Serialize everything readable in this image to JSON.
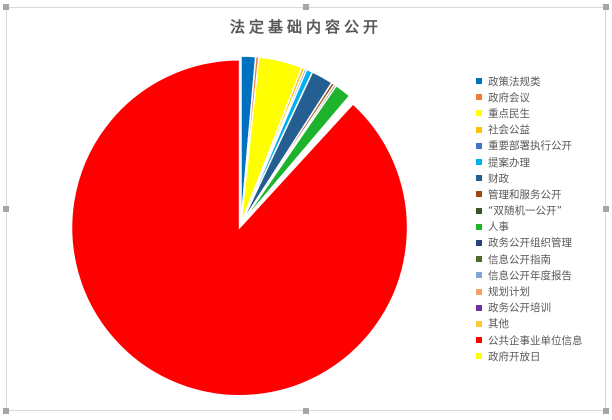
{
  "chart_data": {
    "type": "pie",
    "title": "法定基础内容公开",
    "legend_position": "right",
    "start_angle": "top, clockwise",
    "exploded_slice": "公共企事业单位信息",
    "slices": [
      {
        "label": "政策法规类",
        "value": 1.4,
        "color": "#0070C0"
      },
      {
        "label": "政府会议",
        "value": 0.3,
        "color": "#ED7D31"
      },
      {
        "label": "重点民生",
        "value": 4.2,
        "color": "#FFFF00"
      },
      {
        "label": "社会公益",
        "value": 0.3,
        "color": "#FFC000"
      },
      {
        "label": "重要部署执行公开",
        "value": 0.2,
        "color": "#4472C4"
      },
      {
        "label": "提案办理",
        "value": 0.6,
        "color": "#00B0F0"
      },
      {
        "label": "财政",
        "value": 2.1,
        "color": "#255E91"
      },
      {
        "label": "管理和服务公开",
        "value": 0.3,
        "color": "#9E480E"
      },
      {
        "label": "“双随机一公开”",
        "value": 0.2,
        "color": "#375623"
      },
      {
        "label": "人事",
        "value": 1.6,
        "color": "#1DB32D"
      },
      {
        "label": "政务公开组织管理",
        "value": 0.1,
        "color": "#264478"
      },
      {
        "label": "信息公开指南",
        "value": 0.1,
        "color": "#4E6B2F"
      },
      {
        "label": "信息公开年度报告",
        "value": 0.1,
        "color": "#7FA7D4"
      },
      {
        "label": "规划计划",
        "value": 0.1,
        "color": "#F4A06B"
      },
      {
        "label": "政务公开培训",
        "value": 0.1,
        "color": "#7030A0"
      },
      {
        "label": "其他",
        "value": 0.1,
        "color": "#FFC935"
      },
      {
        "label": "公共企事业单位信息",
        "value": 88.2,
        "color": "#FF0000"
      },
      {
        "label": "政府开放日",
        "value": 0.0,
        "color": "#FFFF00"
      }
    ]
  }
}
